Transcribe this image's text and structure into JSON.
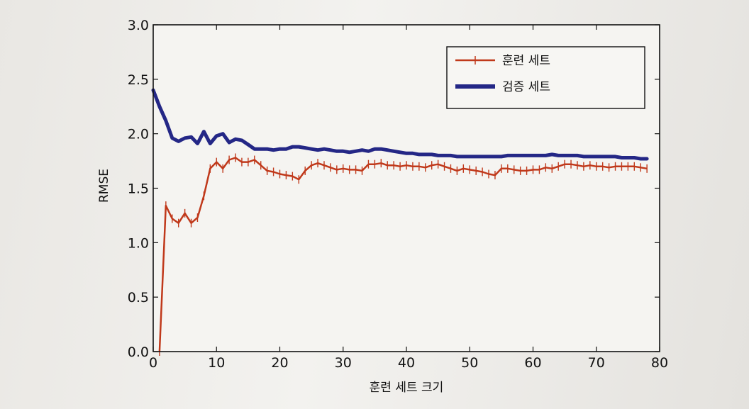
{
  "chart_data": {
    "type": "line",
    "xlabel": "훈련 세트 크기",
    "ylabel": "RMSE",
    "xlim": [
      0,
      80
    ],
    "ylim": [
      0.0,
      3.0
    ],
    "xticks": [
      0,
      10,
      20,
      30,
      40,
      50,
      60,
      70,
      80
    ],
    "yticks": [
      0.0,
      0.5,
      1.0,
      1.5,
      2.0,
      2.5,
      3.0
    ],
    "xtick_labels": [
      "0",
      "10",
      "20",
      "30",
      "40",
      "50",
      "60",
      "70",
      "80"
    ],
    "ytick_labels": [
      "0.0",
      "0.5",
      "1.0",
      "1.5",
      "2.0",
      "2.5",
      "3.0"
    ],
    "grid": false,
    "legend_position": "top-right",
    "series": [
      {
        "name": "훈련 세트",
        "color": "#c0391b",
        "marker": "+",
        "x": [
          1,
          2,
          3,
          4,
          5,
          6,
          7,
          8,
          9,
          10,
          11,
          12,
          13,
          14,
          15,
          16,
          17,
          18,
          19,
          20,
          21,
          22,
          23,
          24,
          25,
          26,
          27,
          28,
          29,
          30,
          31,
          32,
          33,
          34,
          35,
          36,
          37,
          38,
          39,
          40,
          41,
          42,
          43,
          44,
          45,
          46,
          47,
          48,
          49,
          50,
          51,
          52,
          53,
          54,
          55,
          56,
          57,
          58,
          59,
          60,
          61,
          62,
          63,
          64,
          65,
          66,
          67,
          68,
          69,
          70,
          71,
          72,
          73,
          74,
          75,
          76,
          77,
          78
        ],
        "y": [
          0.0,
          1.34,
          1.22,
          1.18,
          1.27,
          1.18,
          1.23,
          1.43,
          1.68,
          1.74,
          1.68,
          1.76,
          1.78,
          1.74,
          1.74,
          1.76,
          1.71,
          1.66,
          1.65,
          1.63,
          1.62,
          1.61,
          1.58,
          1.66,
          1.71,
          1.73,
          1.71,
          1.69,
          1.67,
          1.68,
          1.67,
          1.67,
          1.66,
          1.72,
          1.72,
          1.73,
          1.71,
          1.71,
          1.7,
          1.71,
          1.7,
          1.7,
          1.69,
          1.71,
          1.72,
          1.7,
          1.68,
          1.66,
          1.68,
          1.67,
          1.66,
          1.65,
          1.63,
          1.62,
          1.68,
          1.68,
          1.67,
          1.66,
          1.66,
          1.67,
          1.67,
          1.69,
          1.68,
          1.7,
          1.72,
          1.72,
          1.71,
          1.7,
          1.71,
          1.7,
          1.7,
          1.69,
          1.7,
          1.7,
          1.7,
          1.7,
          1.69,
          1.68
        ]
      },
      {
        "name": "검증 세트",
        "color": "#242786",
        "x": [
          0,
          1,
          2,
          3,
          4,
          5,
          6,
          7,
          8,
          9,
          10,
          11,
          12,
          13,
          14,
          15,
          16,
          17,
          18,
          19,
          20,
          21,
          22,
          23,
          24,
          25,
          26,
          27,
          28,
          29,
          30,
          31,
          32,
          33,
          34,
          35,
          36,
          37,
          38,
          39,
          40,
          41,
          42,
          43,
          44,
          45,
          46,
          47,
          48,
          49,
          50,
          51,
          52,
          53,
          54,
          55,
          56,
          57,
          58,
          59,
          60,
          61,
          62,
          63,
          64,
          65,
          66,
          67,
          68,
          69,
          70,
          71,
          72,
          73,
          74,
          75,
          76,
          77,
          78
        ],
        "y": [
          2.4,
          2.25,
          2.12,
          1.96,
          1.93,
          1.96,
          1.97,
          1.91,
          2.02,
          1.91,
          1.98,
          2.0,
          1.92,
          1.95,
          1.94,
          1.9,
          1.86,
          1.86,
          1.86,
          1.85,
          1.86,
          1.86,
          1.88,
          1.88,
          1.87,
          1.86,
          1.85,
          1.86,
          1.85,
          1.84,
          1.84,
          1.83,
          1.84,
          1.85,
          1.84,
          1.86,
          1.86,
          1.85,
          1.84,
          1.83,
          1.82,
          1.82,
          1.81,
          1.81,
          1.81,
          1.8,
          1.8,
          1.8,
          1.79,
          1.79,
          1.79,
          1.79,
          1.79,
          1.79,
          1.79,
          1.79,
          1.8,
          1.8,
          1.8,
          1.8,
          1.8,
          1.8,
          1.8,
          1.81,
          1.8,
          1.8,
          1.8,
          1.8,
          1.79,
          1.79,
          1.79,
          1.79,
          1.79,
          1.79,
          1.78,
          1.78,
          1.78,
          1.77,
          1.77
        ]
      }
    ]
  }
}
